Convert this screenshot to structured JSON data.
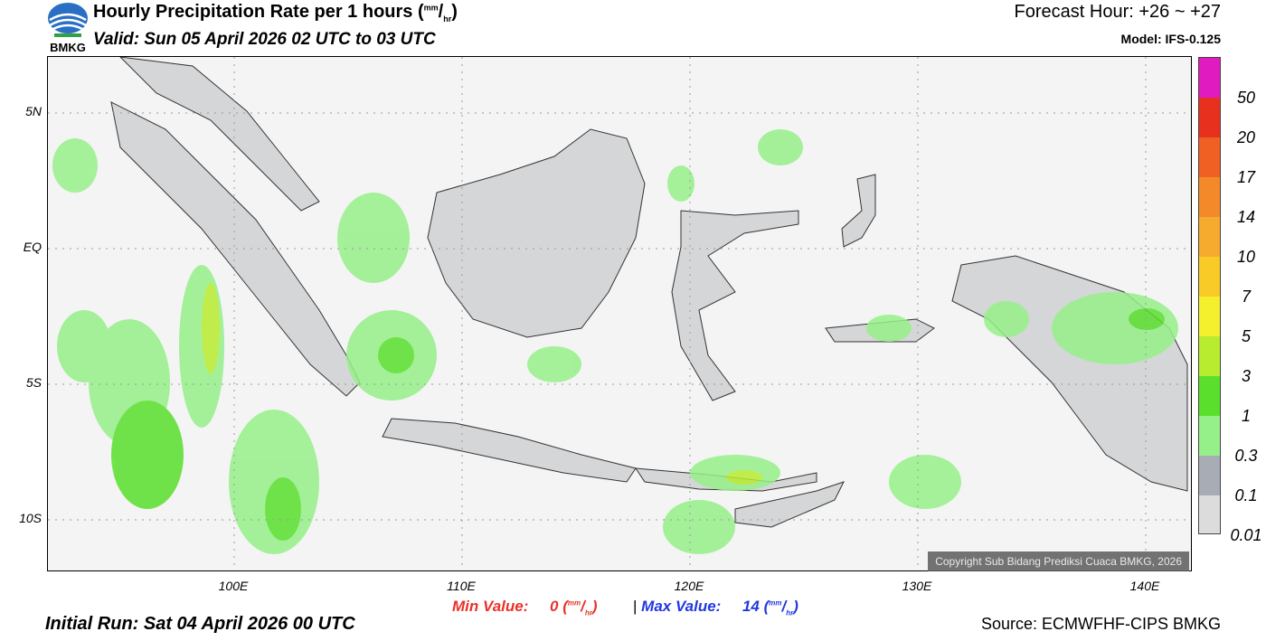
{
  "header": {
    "logo_text": "BMKG",
    "title": "Hourly Precipitation Rate per 1 hours",
    "title_unit_num": "mm",
    "title_unit_den": "hr",
    "valid": "Valid: Sun 05 April 2026 02 UTC to 03 UTC",
    "forecast_hour": "Forecast Hour: +26 ~ +27",
    "model": "Model: IFS-0.125"
  },
  "map": {
    "lat_labels": [
      "5N",
      "EQ",
      "5S",
      "10S"
    ],
    "lon_labels": [
      "100E",
      "110E",
      "120E",
      "130E",
      "140E"
    ],
    "copyright": "Copyright Sub Bidang Prediksi Cuaca BMKG, 2026"
  },
  "legend": {
    "labels": [
      "50",
      "20",
      "17",
      "14",
      "10",
      "7",
      "5",
      "3",
      "1",
      "0.3",
      "0.1",
      "0.01"
    ],
    "colors": [
      "#e01bc0",
      "#e8301f",
      "#f06022",
      "#f4892a",
      "#f6ab2e",
      "#f8cb26",
      "#f4f02e",
      "#b8ec2e",
      "#5ae02c",
      "#96f08a",
      "#a8adb5",
      "#dcdcdc"
    ]
  },
  "footer": {
    "min_label": "Min Value:",
    "min_value": "0",
    "max_label": "Max Value:",
    "max_value": "14",
    "unit_num": "mm",
    "unit_den": "hr",
    "separator": "|",
    "initial_run": "Initial Run: Sat 04 April 2026 00 UTC",
    "source": "Source: ECMWFHF-CIPS BMKG"
  }
}
